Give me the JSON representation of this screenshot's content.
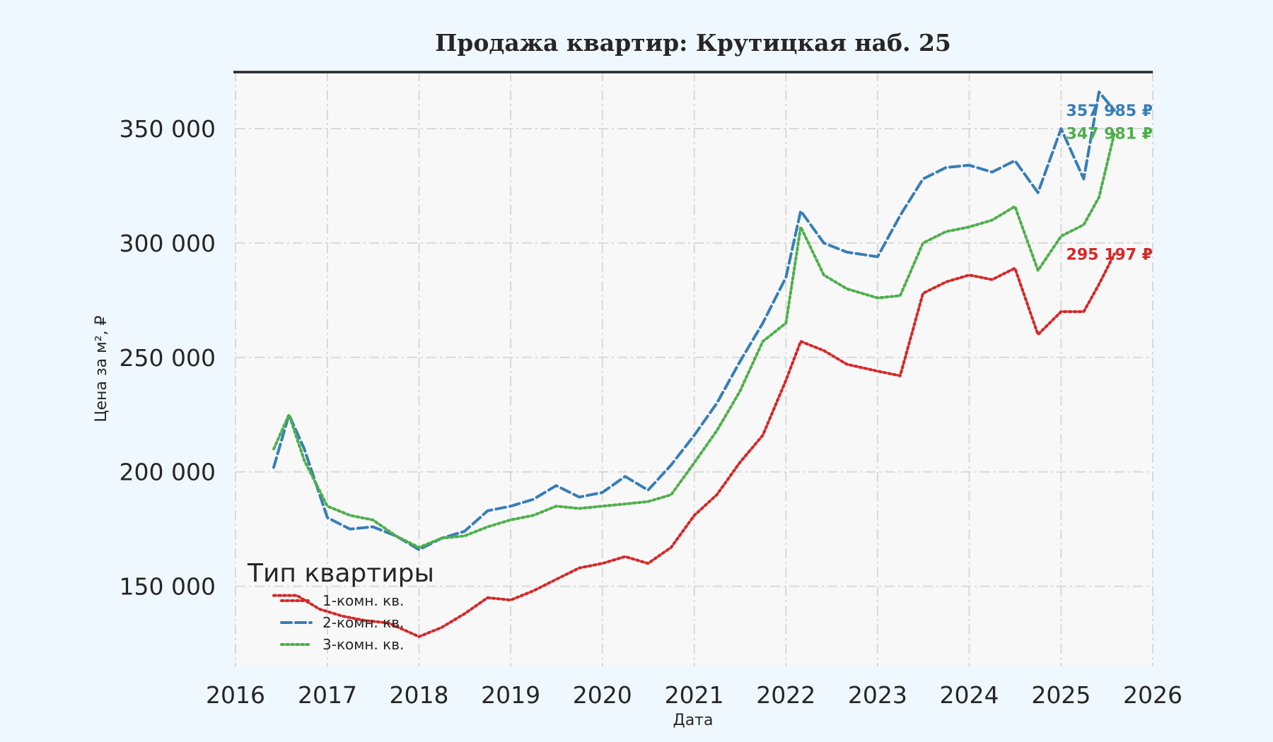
{
  "chart_data": {
    "type": "line",
    "title": "Продажа квартир: Крутицкая наб. 25",
    "xlabel": "Дата",
    "ylabel": "Цена за м², ₽",
    "xlim": [
      "2016-01-01",
      "2026-01-01"
    ],
    "ylim": [
      115000,
      375000
    ],
    "x_ticks": [
      "2016",
      "2017",
      "2018",
      "2019",
      "2020",
      "2021",
      "2022",
      "2023",
      "2024",
      "2025",
      "2026"
    ],
    "y_ticks": [
      150000,
      200000,
      250000,
      300000,
      350000
    ],
    "y_tick_labels": [
      "150 000",
      "200 000",
      "250 000",
      "300 000",
      "350 000"
    ],
    "grid": true,
    "legend": {
      "title": "Тип квартиры",
      "placement": "bottom-left"
    },
    "series": [
      {
        "name": "1-комн. кв.",
        "color": "#d62728",
        "style": "dotted",
        "end_label": "295 197 ₽",
        "points": [
          [
            "2016-06-01",
            146000
          ],
          [
            "2016-09-01",
            146000
          ],
          [
            "2016-12-01",
            140000
          ],
          [
            "2017-03-01",
            137000
          ],
          [
            "2017-06-01",
            135000
          ],
          [
            "2017-09-01",
            134000
          ],
          [
            "2018-01-01",
            128000
          ],
          [
            "2018-04-01",
            132000
          ],
          [
            "2018-07-01",
            138000
          ],
          [
            "2018-10-01",
            145000
          ],
          [
            "2019-01-01",
            144000
          ],
          [
            "2019-04-01",
            148000
          ],
          [
            "2019-07-01",
            153000
          ],
          [
            "2019-10-01",
            158000
          ],
          [
            "2020-01-01",
            160000
          ],
          [
            "2020-04-01",
            163000
          ],
          [
            "2020-07-01",
            160000
          ],
          [
            "2020-10-01",
            167000
          ],
          [
            "2021-01-01",
            181000
          ],
          [
            "2021-04-01",
            190000
          ],
          [
            "2021-07-01",
            204000
          ],
          [
            "2021-10-01",
            216000
          ],
          [
            "2022-01-01",
            240000
          ],
          [
            "2022-03-01",
            257000
          ],
          [
            "2022-06-01",
            253000
          ],
          [
            "2022-09-01",
            247000
          ],
          [
            "2023-01-01",
            244000
          ],
          [
            "2023-04-01",
            242000
          ],
          [
            "2023-07-01",
            278000
          ],
          [
            "2023-10-01",
            283000
          ],
          [
            "2024-01-01",
            286000
          ],
          [
            "2024-04-01",
            284000
          ],
          [
            "2024-07-01",
            289000
          ],
          [
            "2024-10-01",
            260000
          ],
          [
            "2025-01-01",
            270000
          ],
          [
            "2025-04-01",
            270000
          ],
          [
            "2025-06-01",
            282000
          ],
          [
            "2025-08-01",
            295197
          ]
        ]
      },
      {
        "name": "2-комн. кв.",
        "color": "#377eb8",
        "style": "dashed",
        "end_label": "357 985 ₽",
        "points": [
          [
            "2016-06-01",
            202000
          ],
          [
            "2016-08-01",
            225000
          ],
          [
            "2016-10-01",
            210000
          ],
          [
            "2017-01-01",
            180000
          ],
          [
            "2017-04-01",
            175000
          ],
          [
            "2017-07-01",
            176000
          ],
          [
            "2017-10-01",
            172000
          ],
          [
            "2018-01-01",
            166000
          ],
          [
            "2018-04-01",
            171000
          ],
          [
            "2018-07-01",
            174000
          ],
          [
            "2018-10-01",
            183000
          ],
          [
            "2019-01-01",
            185000
          ],
          [
            "2019-04-01",
            188000
          ],
          [
            "2019-07-01",
            194000
          ],
          [
            "2019-10-01",
            189000
          ],
          [
            "2020-01-01",
            191000
          ],
          [
            "2020-04-01",
            198000
          ],
          [
            "2020-07-01",
            192000
          ],
          [
            "2020-10-01",
            203000
          ],
          [
            "2021-01-01",
            216000
          ],
          [
            "2021-04-01",
            230000
          ],
          [
            "2021-07-01",
            248000
          ],
          [
            "2021-10-01",
            265000
          ],
          [
            "2022-01-01",
            285000
          ],
          [
            "2022-03-01",
            314000
          ],
          [
            "2022-06-01",
            300000
          ],
          [
            "2022-09-01",
            296000
          ],
          [
            "2023-01-01",
            294000
          ],
          [
            "2023-04-01",
            312000
          ],
          [
            "2023-07-01",
            328000
          ],
          [
            "2023-10-01",
            333000
          ],
          [
            "2024-01-01",
            334000
          ],
          [
            "2024-04-01",
            331000
          ],
          [
            "2024-07-01",
            336000
          ],
          [
            "2024-10-01",
            322000
          ],
          [
            "2025-01-01",
            350000
          ],
          [
            "2025-04-01",
            328000
          ],
          [
            "2025-06-01",
            366000
          ],
          [
            "2025-08-01",
            357985
          ]
        ]
      },
      {
        "name": "3-комн. кв.",
        "color": "#4daf4a",
        "style": "dotted",
        "end_label": "347 981 ₽",
        "points": [
          [
            "2016-06-01",
            210000
          ],
          [
            "2016-08-01",
            225000
          ],
          [
            "2016-10-01",
            205000
          ],
          [
            "2017-01-01",
            185000
          ],
          [
            "2017-04-01",
            181000
          ],
          [
            "2017-07-01",
            179000
          ],
          [
            "2017-10-01",
            172000
          ],
          [
            "2018-01-01",
            167000
          ],
          [
            "2018-04-01",
            171000
          ],
          [
            "2018-07-01",
            172000
          ],
          [
            "2018-10-01",
            176000
          ],
          [
            "2019-01-01",
            179000
          ],
          [
            "2019-04-01",
            181000
          ],
          [
            "2019-07-01",
            185000
          ],
          [
            "2019-10-01",
            184000
          ],
          [
            "2020-01-01",
            185000
          ],
          [
            "2020-04-01",
            186000
          ],
          [
            "2020-07-01",
            187000
          ],
          [
            "2020-10-01",
            190000
          ],
          [
            "2021-01-01",
            204000
          ],
          [
            "2021-04-01",
            218000
          ],
          [
            "2021-07-01",
            235000
          ],
          [
            "2021-10-01",
            257000
          ],
          [
            "2022-01-01",
            265000
          ],
          [
            "2022-03-01",
            307000
          ],
          [
            "2022-06-01",
            286000
          ],
          [
            "2022-09-01",
            280000
          ],
          [
            "2023-01-01",
            276000
          ],
          [
            "2023-04-01",
            277000
          ],
          [
            "2023-07-01",
            300000
          ],
          [
            "2023-10-01",
            305000
          ],
          [
            "2024-01-01",
            307000
          ],
          [
            "2024-04-01",
            310000
          ],
          [
            "2024-07-01",
            316000
          ],
          [
            "2024-10-01",
            288000
          ],
          [
            "2025-01-01",
            303000
          ],
          [
            "2025-04-01",
            308000
          ],
          [
            "2025-06-01",
            320000
          ],
          [
            "2025-08-01",
            347981
          ]
        ]
      }
    ]
  }
}
